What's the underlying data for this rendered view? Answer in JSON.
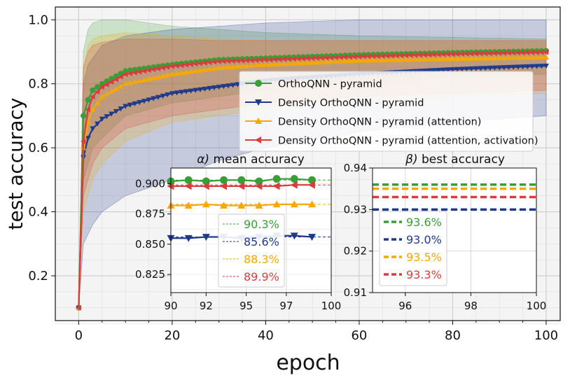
{
  "chart_data": [
    {
      "type": "line",
      "xlabel": "epoch",
      "ylabel": "test accuracy",
      "xlim": [
        -5,
        103
      ],
      "ylim": [
        0.06,
        1.04
      ],
      "xticks": [
        "0",
        "20",
        "40",
        "60",
        "80",
        "100"
      ],
      "yticks": [
        "0.2",
        "0.4",
        "0.6",
        "0.8",
        "1.0"
      ],
      "grid": true,
      "legend_position": "center-right",
      "shaded_band": "spread across runs (min to max)",
      "series": [
        {
          "name": "OrthoQNN - pyramid",
          "color": "#3a9e36",
          "marker": "circle",
          "points": [
            [
              0,
              0.1
            ],
            [
              1,
              0.7
            ],
            [
              2,
              0.75
            ],
            [
              3,
              0.78
            ],
            [
              5,
              0.8
            ],
            [
              10,
              0.84
            ],
            [
              20,
              0.86
            ],
            [
              30,
              0.875
            ],
            [
              40,
              0.88
            ],
            [
              60,
              0.89
            ],
            [
              80,
              0.897
            ],
            [
              100,
              0.903
            ]
          ],
          "band_upper": [
            [
              0,
              0.1
            ],
            [
              1,
              0.9
            ],
            [
              2,
              0.97
            ],
            [
              3,
              0.99
            ],
            [
              5,
              1.0
            ],
            [
              10,
              1.0
            ],
            [
              20,
              0.98
            ],
            [
              30,
              0.97
            ],
            [
              40,
              0.96
            ],
            [
              60,
              0.95
            ],
            [
              80,
              0.945
            ],
            [
              100,
              0.94
            ]
          ],
          "band_lower": [
            [
              0,
              0.1
            ],
            [
              1,
              0.5
            ],
            [
              2,
              0.55
            ],
            [
              3,
              0.6
            ],
            [
              5,
              0.63
            ],
            [
              10,
              0.7
            ],
            [
              20,
              0.74
            ],
            [
              30,
              0.76
            ],
            [
              40,
              0.78
            ],
            [
              60,
              0.8
            ],
            [
              80,
              0.82
            ],
            [
              100,
              0.83
            ]
          ]
        },
        {
          "name": "Density OrthoQNN - pyramid",
          "color": "#1f3a8a",
          "marker": "triangle-down",
          "points": [
            [
              0,
              0.1
            ],
            [
              1,
              0.57
            ],
            [
              2,
              0.63
            ],
            [
              3,
              0.66
            ],
            [
              5,
              0.69
            ],
            [
              10,
              0.73
            ],
            [
              20,
              0.77
            ],
            [
              30,
              0.79
            ],
            [
              40,
              0.81
            ],
            [
              60,
              0.83
            ],
            [
              80,
              0.845
            ],
            [
              100,
              0.856
            ]
          ],
          "band_upper": [
            [
              0,
              0.1
            ],
            [
              1,
              0.8
            ],
            [
              2,
              0.86
            ],
            [
              3,
              0.88
            ],
            [
              5,
              0.92
            ],
            [
              10,
              0.95
            ],
            [
              20,
              0.97
            ],
            [
              30,
              0.98
            ],
            [
              40,
              0.99
            ],
            [
              60,
              1.0
            ],
            [
              80,
              1.0
            ],
            [
              100,
              1.0
            ]
          ],
          "band_lower": [
            [
              0,
              0.1
            ],
            [
              1,
              0.3
            ],
            [
              2,
              0.33
            ],
            [
              3,
              0.36
            ],
            [
              5,
              0.4
            ],
            [
              10,
              0.45
            ],
            [
              20,
              0.5
            ],
            [
              30,
              0.56
            ],
            [
              40,
              0.6
            ],
            [
              60,
              0.65
            ],
            [
              80,
              0.68
            ],
            [
              100,
              0.7
            ]
          ]
        },
        {
          "name": "Density OrthoQNN - pyramid (attention)",
          "color": "#f5a800",
          "marker": "triangle-up",
          "points": [
            [
              0,
              0.1
            ],
            [
              1,
              0.6
            ],
            [
              2,
              0.68
            ],
            [
              3,
              0.72
            ],
            [
              5,
              0.76
            ],
            [
              10,
              0.8
            ],
            [
              20,
              0.83
            ],
            [
              30,
              0.85
            ],
            [
              40,
              0.86
            ],
            [
              60,
              0.873
            ],
            [
              80,
              0.878
            ],
            [
              100,
              0.883
            ]
          ],
          "band_upper": [
            [
              0,
              0.1
            ],
            [
              1,
              0.85
            ],
            [
              2,
              0.92
            ],
            [
              3,
              0.94
            ],
            [
              5,
              0.95
            ],
            [
              10,
              0.96
            ],
            [
              20,
              0.95
            ],
            [
              30,
              0.94
            ],
            [
              40,
              0.935
            ],
            [
              60,
              0.935
            ],
            [
              80,
              0.935
            ],
            [
              100,
              0.935
            ]
          ],
          "band_lower": [
            [
              0,
              0.1
            ],
            [
              1,
              0.4
            ],
            [
              2,
              0.45
            ],
            [
              3,
              0.5
            ],
            [
              5,
              0.55
            ],
            [
              10,
              0.62
            ],
            [
              20,
              0.68
            ],
            [
              30,
              0.7
            ],
            [
              40,
              0.72
            ],
            [
              60,
              0.74
            ],
            [
              80,
              0.76
            ],
            [
              100,
              0.77
            ]
          ]
        },
        {
          "name": "Density OrthoQNN - pyramid (attention, activation)",
          "color": "#d93c3c",
          "marker": "triangle-left",
          "points": [
            [
              0,
              0.1
            ],
            [
              1,
              0.62
            ],
            [
              2,
              0.72
            ],
            [
              3,
              0.76
            ],
            [
              5,
              0.79
            ],
            [
              10,
              0.83
            ],
            [
              20,
              0.855
            ],
            [
              30,
              0.87
            ],
            [
              40,
              0.875
            ],
            [
              60,
              0.885
            ],
            [
              80,
              0.893
            ],
            [
              100,
              0.899
            ]
          ],
          "band_upper": [
            [
              0,
              0.1
            ],
            [
              1,
              0.85
            ],
            [
              2,
              0.9
            ],
            [
              3,
              0.92
            ],
            [
              5,
              0.93
            ],
            [
              10,
              0.94
            ],
            [
              20,
              0.94
            ],
            [
              30,
              0.935
            ],
            [
              40,
              0.935
            ],
            [
              60,
              0.935
            ],
            [
              80,
              0.935
            ],
            [
              100,
              0.935
            ]
          ],
          "band_lower": [
            [
              0,
              0.1
            ],
            [
              1,
              0.45
            ],
            [
              2,
              0.5
            ],
            [
              3,
              0.55
            ],
            [
              5,
              0.6
            ],
            [
              10,
              0.66
            ],
            [
              20,
              0.7
            ],
            [
              30,
              0.72
            ],
            [
              40,
              0.74
            ],
            [
              60,
              0.76
            ],
            [
              80,
              0.77
            ],
            [
              100,
              0.78
            ]
          ]
        }
      ]
    },
    {
      "type": "line",
      "title_prefix": "α)",
      "title": "mean accuracy",
      "xlim": [
        90,
        100
      ],
      "ylim": [
        0.81,
        0.913
      ],
      "xticks": [
        "90",
        "92",
        "95",
        "97",
        "100"
      ],
      "xtick_values": [
        90,
        92.2,
        94.7,
        97.2,
        100
      ],
      "yticks": [
        "0.825",
        "0.850",
        "0.875",
        "0.900"
      ],
      "grid": true,
      "legend_position": "center",
      "series": [
        {
          "name": "90.3%",
          "color": "#3a9e36",
          "marker": "circle",
          "x": [
            90,
            91.1,
            92.2,
            93.3,
            94.4,
            95.5,
            96.6,
            97.7,
            98.8
          ],
          "y": [
            0.902,
            0.903,
            0.902,
            0.903,
            0.903,
            0.902,
            0.904,
            0.904,
            0.903
          ],
          "mean": 0.903
        },
        {
          "name": "85.6%",
          "color": "#1f3a8a",
          "marker": "triangle-down",
          "x": [
            90,
            91.1,
            92.2,
            93.3,
            94.4,
            95.5,
            96.6,
            97.7,
            98.8
          ],
          "y": [
            0.855,
            0.855,
            0.856,
            0.856,
            0.855,
            0.856,
            0.857,
            0.857,
            0.856
          ],
          "mean": 0.856
        },
        {
          "name": "88.3%",
          "color": "#f5a800",
          "marker": "triangle-up",
          "x": [
            90,
            91.1,
            92.2,
            93.3,
            94.4,
            95.5,
            96.6,
            97.7,
            98.8
          ],
          "y": [
            0.882,
            0.882,
            0.883,
            0.882,
            0.882,
            0.882,
            0.883,
            0.883,
            0.883
          ],
          "mean": 0.883
        },
        {
          "name": "89.9%",
          "color": "#d93c3c",
          "marker": "triangle-left",
          "x": [
            90,
            91.1,
            92.2,
            93.3,
            94.4,
            95.5,
            96.6,
            97.7,
            98.8
          ],
          "y": [
            0.898,
            0.898,
            0.898,
            0.898,
            0.898,
            0.898,
            0.898,
            0.899,
            0.899
          ],
          "mean": 0.899
        }
      ]
    },
    {
      "type": "line",
      "title_prefix": "β)",
      "title": "best accuracy",
      "xlim": [
        95,
        100
      ],
      "ylim": [
        0.91,
        0.94
      ],
      "xticks": [
        "96",
        "98",
        "100"
      ],
      "yticks": [
        "0.91",
        "0.92",
        "0.93",
        "0.94"
      ],
      "grid": true,
      "legend_position": "lower-left",
      "series": [
        {
          "name": "93.6%",
          "color": "#3a9e36",
          "value": 0.936
        },
        {
          "name": "93.0%",
          "color": "#1f3a8a",
          "value": 0.93
        },
        {
          "name": "93.5%",
          "color": "#f5a800",
          "value": 0.935
        },
        {
          "name": "93.3%",
          "color": "#d93c3c",
          "value": 0.933
        }
      ]
    }
  ]
}
